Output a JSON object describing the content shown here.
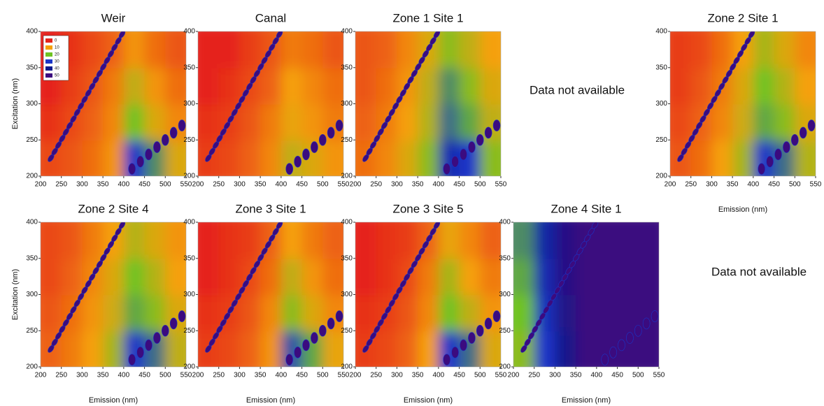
{
  "notes": [
    "Data not available",
    "Data not available"
  ],
  "colorbar": {
    "levels": [
      0,
      10,
      20,
      30,
      40,
      50
    ],
    "colors": [
      "#e5241b",
      "#f5a00a",
      "#6fc323",
      "#1a36c8",
      "#0b1a8e",
      "#3b0b7f"
    ]
  },
  "chart_data": [
    {
      "type": "contour",
      "title": "Weir",
      "ylabel": "Excitation (nm)",
      "legend": "upper left",
      "xlim": [
        200,
        550
      ],
      "ylim": [
        200,
        400
      ],
      "xticks": [
        200,
        250,
        300,
        350,
        400,
        450,
        500,
        550
      ],
      "yticks": [
        200,
        250,
        300,
        350,
        400
      ],
      "x": [
        225,
        275,
        325,
        375,
        425,
        475,
        525
      ],
      "y": [
        225,
        275,
        325,
        375
      ],
      "z": [
        [
          3,
          4,
          6,
          9,
          30,
          24,
          12
        ],
        [
          1,
          3,
          5,
          8,
          20,
          12,
          8
        ],
        [
          0,
          2,
          4,
          7,
          14,
          9,
          6
        ],
        [
          0,
          1,
          3,
          5,
          9,
          6,
          4
        ]
      ]
    },
    {
      "type": "contour",
      "title": "Canal",
      "xlim": [
        200,
        550
      ],
      "ylim": [
        200,
        400
      ],
      "xticks": [
        200,
        250,
        300,
        350,
        400,
        450,
        500,
        550
      ],
      "yticks": [
        200,
        250,
        300,
        350,
        400
      ],
      "x": [
        225,
        275,
        325,
        375,
        425,
        475,
        525
      ],
      "y": [
        225,
        275,
        325,
        375
      ],
      "z": [
        [
          2,
          3,
          5,
          8,
          14,
          12,
          9
        ],
        [
          1,
          2,
          4,
          7,
          11,
          9,
          7
        ],
        [
          0,
          1,
          3,
          5,
          10,
          8,
          6
        ],
        [
          0,
          0,
          2,
          4,
          7,
          6,
          4
        ]
      ]
    },
    {
      "type": "contour",
      "title": "Zone 1 Site 1",
      "xlim": [
        200,
        550
      ],
      "ylim": [
        200,
        400
      ],
      "xticks": [
        200,
        250,
        300,
        350,
        400,
        450,
        500,
        550
      ],
      "yticks": [
        200,
        250,
        300,
        350,
        400
      ],
      "x": [
        225,
        275,
        325,
        375,
        425,
        475,
        525
      ],
      "y": [
        225,
        275,
        325,
        375
      ],
      "z": [
        [
          6,
          8,
          12,
          18,
          34,
          30,
          18
        ],
        [
          5,
          7,
          10,
          15,
          26,
          22,
          14
        ],
        [
          4,
          6,
          9,
          14,
          24,
          18,
          12
        ],
        [
          4,
          5,
          8,
          12,
          18,
          14,
          10
        ]
      ]
    },
    {
      "type": "contour",
      "title": "Zone 2 Site 1",
      "xlabel": "Emission (nm)",
      "xlim": [
        200,
        550
      ],
      "ylim": [
        200,
        400
      ],
      "xticks": [
        200,
        250,
        300,
        350,
        400,
        450,
        500,
        550
      ],
      "yticks": [
        200,
        250,
        300,
        350,
        400
      ],
      "x": [
        225,
        275,
        325,
        375,
        425,
        475,
        525
      ],
      "y": [
        225,
        275,
        325,
        375
      ],
      "z": [
        [
          4,
          6,
          10,
          16,
          30,
          26,
          15
        ],
        [
          3,
          5,
          8,
          13,
          22,
          18,
          12
        ],
        [
          2,
          4,
          7,
          12,
          20,
          15,
          10
        ],
        [
          2,
          3,
          6,
          10,
          16,
          12,
          8
        ]
      ]
    },
    {
      "type": "contour",
      "title": "Zone 2 Site 4",
      "xlabel": "Emission (nm)",
      "ylabel": "Excitation (nm)",
      "xlim": [
        200,
        550
      ],
      "ylim": [
        200,
        400
      ],
      "xticks": [
        200,
        250,
        300,
        350,
        400,
        450,
        500,
        550
      ],
      "yticks": [
        200,
        250,
        300,
        350,
        400
      ],
      "x": [
        225,
        275,
        325,
        375,
        425,
        475,
        525
      ],
      "y": [
        225,
        275,
        325,
        375
      ],
      "z": [
        [
          5,
          7,
          10,
          16,
          30,
          26,
          14
        ],
        [
          4,
          6,
          9,
          13,
          22,
          18,
          12
        ],
        [
          3,
          5,
          8,
          12,
          20,
          15,
          10
        ],
        [
          3,
          4,
          7,
          10,
          15,
          12,
          9
        ]
      ]
    },
    {
      "type": "contour",
      "title": "Zone 3 Site 1",
      "xlabel": "Emission (nm)",
      "xlim": [
        200,
        550
      ],
      "ylim": [
        200,
        400
      ],
      "xticks": [
        200,
        250,
        300,
        350,
        400,
        450,
        500,
        550
      ],
      "yticks": [
        200,
        250,
        300,
        350,
        400
      ],
      "x": [
        225,
        275,
        325,
        375,
        425,
        475,
        525
      ],
      "y": [
        225,
        275,
        325,
        375
      ],
      "z": [
        [
          2,
          3,
          5,
          9,
          28,
          22,
          11
        ],
        [
          1,
          2,
          4,
          8,
          18,
          12,
          8
        ],
        [
          0,
          1,
          3,
          6,
          14,
          9,
          6
        ],
        [
          0,
          1,
          2,
          5,
          10,
          7,
          5
        ]
      ]
    },
    {
      "type": "contour",
      "title": "Zone 3 Site 5",
      "xlabel": "Emission (nm)",
      "xlim": [
        200,
        550
      ],
      "ylim": [
        200,
        400
      ],
      "xticks": [
        200,
        250,
        300,
        350,
        400,
        450,
        500,
        550
      ],
      "yticks": [
        200,
        250,
        300,
        350,
        400
      ],
      "x": [
        225,
        275,
        325,
        375,
        425,
        475,
        525
      ],
      "y": [
        225,
        275,
        325,
        375
      ],
      "z": [
        [
          2,
          3,
          5,
          10,
          30,
          26,
          12
        ],
        [
          1,
          2,
          4,
          8,
          20,
          14,
          9
        ],
        [
          0,
          1,
          3,
          7,
          16,
          10,
          7
        ],
        [
          0,
          1,
          2,
          5,
          11,
          8,
          5
        ]
      ]
    },
    {
      "type": "contour",
      "title": "Zone 4 Site 1",
      "xlabel": "Emission (nm)",
      "xlim": [
        200,
        550
      ],
      "ylim": [
        200,
        400
      ],
      "xticks": [
        200,
        250,
        300,
        350,
        400,
        450,
        500,
        550
      ],
      "yticks": [
        200,
        250,
        300,
        350,
        400
      ],
      "x": [
        225,
        275,
        325,
        375,
        425,
        475,
        525
      ],
      "y": [
        225,
        275,
        325,
        375
      ],
      "z": [
        [
          18,
          30,
          42,
          50,
          50,
          50,
          50
        ],
        [
          20,
          32,
          45,
          50,
          50,
          50,
          50
        ],
        [
          22,
          34,
          46,
          50,
          50,
          50,
          50
        ],
        [
          24,
          36,
          46,
          50,
          50,
          50,
          50
        ]
      ]
    }
  ]
}
